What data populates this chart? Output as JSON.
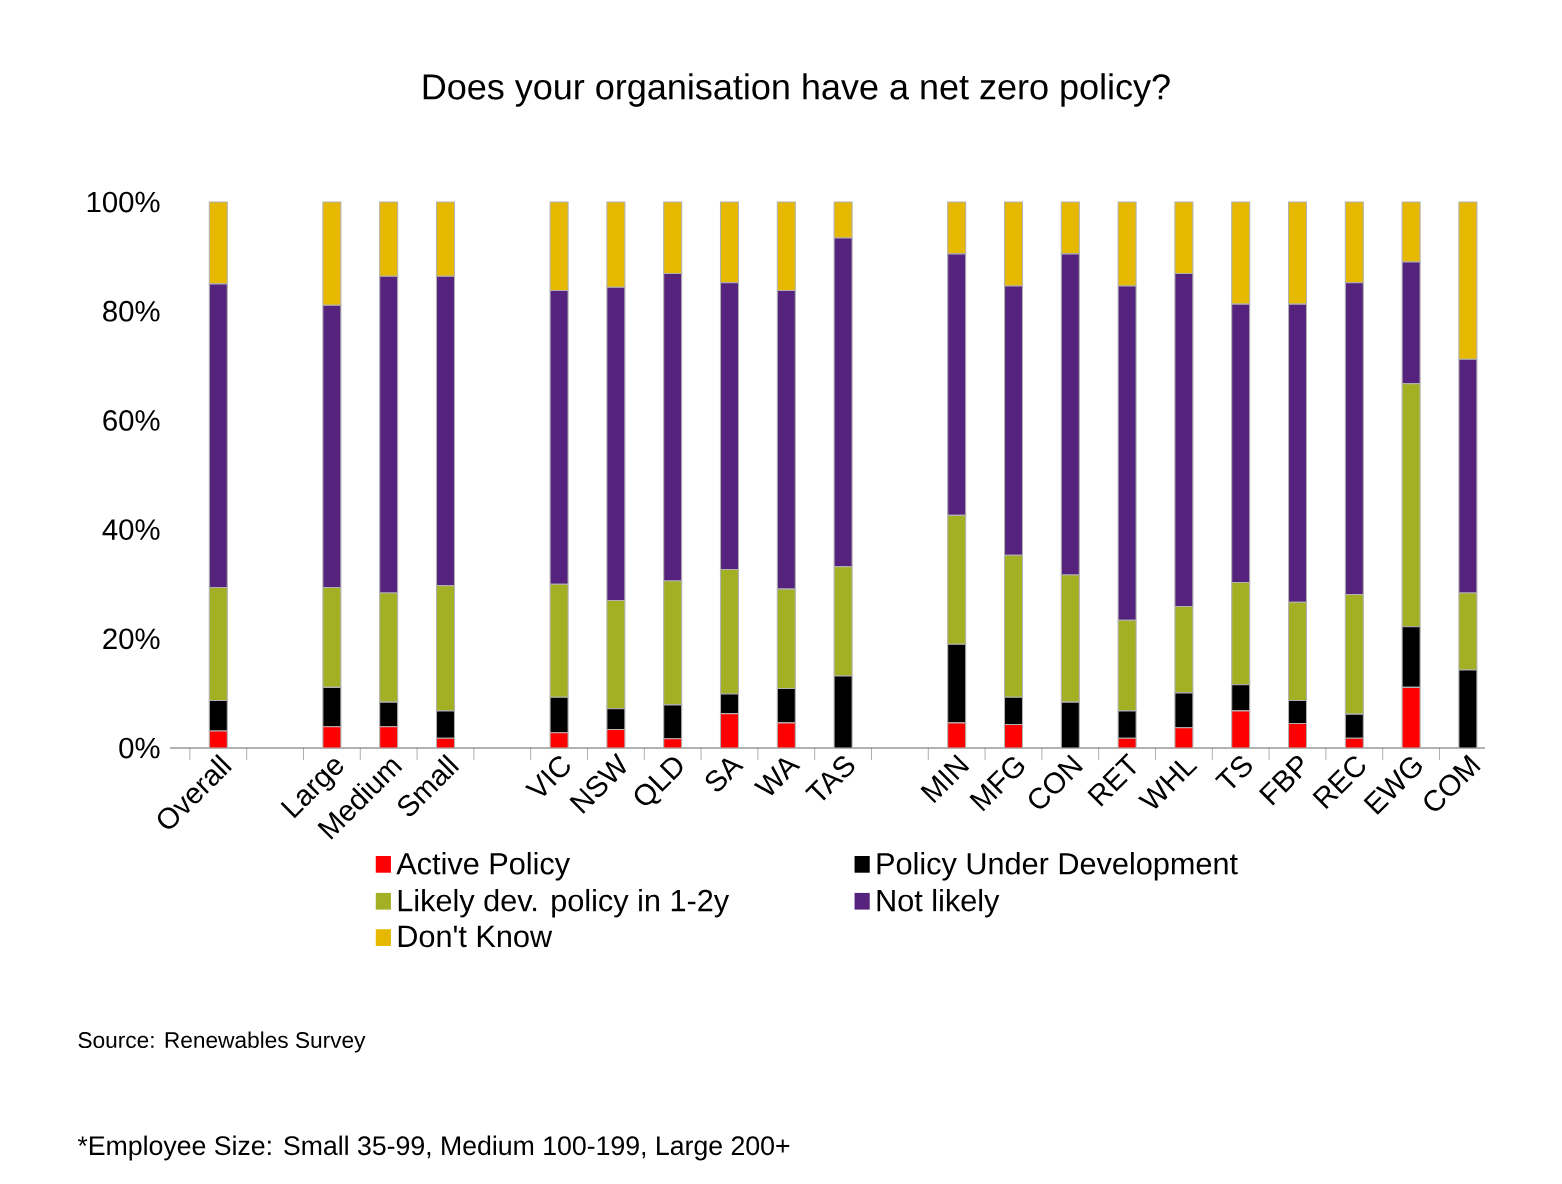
{
  "chart_data": {
    "type": "bar",
    "stacked": true,
    "title": "Does your organisation have a net zero policy?",
    "categories": [
      "Overall",
      null,
      "Large",
      "Medium",
      "Small",
      null,
      "VIC",
      "NSW",
      "QLD",
      "SA",
      "WA",
      "TAS",
      null,
      "MIN",
      "MFG",
      "CON",
      "RET",
      "WHL",
      "TS",
      "FBP",
      "REC",
      "EWG",
      "COM"
    ],
    "series": [
      {
        "name": "Active Policy",
        "color": "#ff0000",
        "values": [
          3.1,
          null,
          3.9,
          3.9,
          1.8,
          null,
          2.8,
          3.4,
          1.7,
          6.3,
          4.6,
          0,
          null,
          4.6,
          4.3,
          0,
          1.8,
          3.7,
          6.8,
          4.5,
          1.8,
          11.1,
          0
        ]
      },
      {
        "name": "Policy Under Development",
        "color": "#000000",
        "values": [
          5.6,
          null,
          7.2,
          4.5,
          5.0,
          null,
          6.5,
          3.8,
          6.2,
          3.6,
          6.3,
          13.2,
          null,
          14.4,
          5.0,
          8.4,
          5.0,
          6.4,
          4.8,
          4.2,
          4.4,
          11.1,
          14.3
        ]
      },
      {
        "name": "Likely dev. policy in 1-2y",
        "color": "#a4b023",
        "values": [
          20.7,
          null,
          18.3,
          20.0,
          22.9,
          null,
          20.7,
          19.8,
          22.7,
          22.8,
          18.2,
          20.0,
          null,
          23.6,
          26.0,
          23.3,
          16.6,
          15.8,
          18.7,
          18.0,
          21.9,
          44.5,
          14.1
        ]
      },
      {
        "name": "Not likely",
        "color": "#55237e",
        "values": [
          55.6,
          null,
          51.7,
          58.0,
          56.7,
          null,
          53.8,
          57.4,
          56.3,
          52.5,
          54.7,
          60.2,
          null,
          47.9,
          49.3,
          58.8,
          61.2,
          61.0,
          51.0,
          54.6,
          57.1,
          22.3,
          42.8
        ]
      },
      {
        "name": "Don't Know",
        "color": "#e6b800",
        "values": [
          15.0,
          null,
          18.9,
          13.6,
          13.6,
          null,
          16.2,
          15.6,
          13.1,
          14.8,
          16.2,
          6.6,
          null,
          9.5,
          15.4,
          9.5,
          15.4,
          13.1,
          18.7,
          18.7,
          14.8,
          11.0,
          28.8
        ]
      }
    ],
    "ylim": [
      0,
      100
    ],
    "yticks": [
      {
        "value": 0,
        "label": "0%"
      },
      {
        "value": 20,
        "label": "20%"
      },
      {
        "value": 40,
        "label": "40%"
      },
      {
        "value": 60,
        "label": "60%"
      },
      {
        "value": 80,
        "label": "80%"
      },
      {
        "value": 100,
        "label": "100%"
      }
    ],
    "legend": "bottom",
    "annotations": [
      "Source: Renewables Survey",
      "*Employee Size: Small 35-99, Medium 100-199, Large 200+"
    ]
  }
}
